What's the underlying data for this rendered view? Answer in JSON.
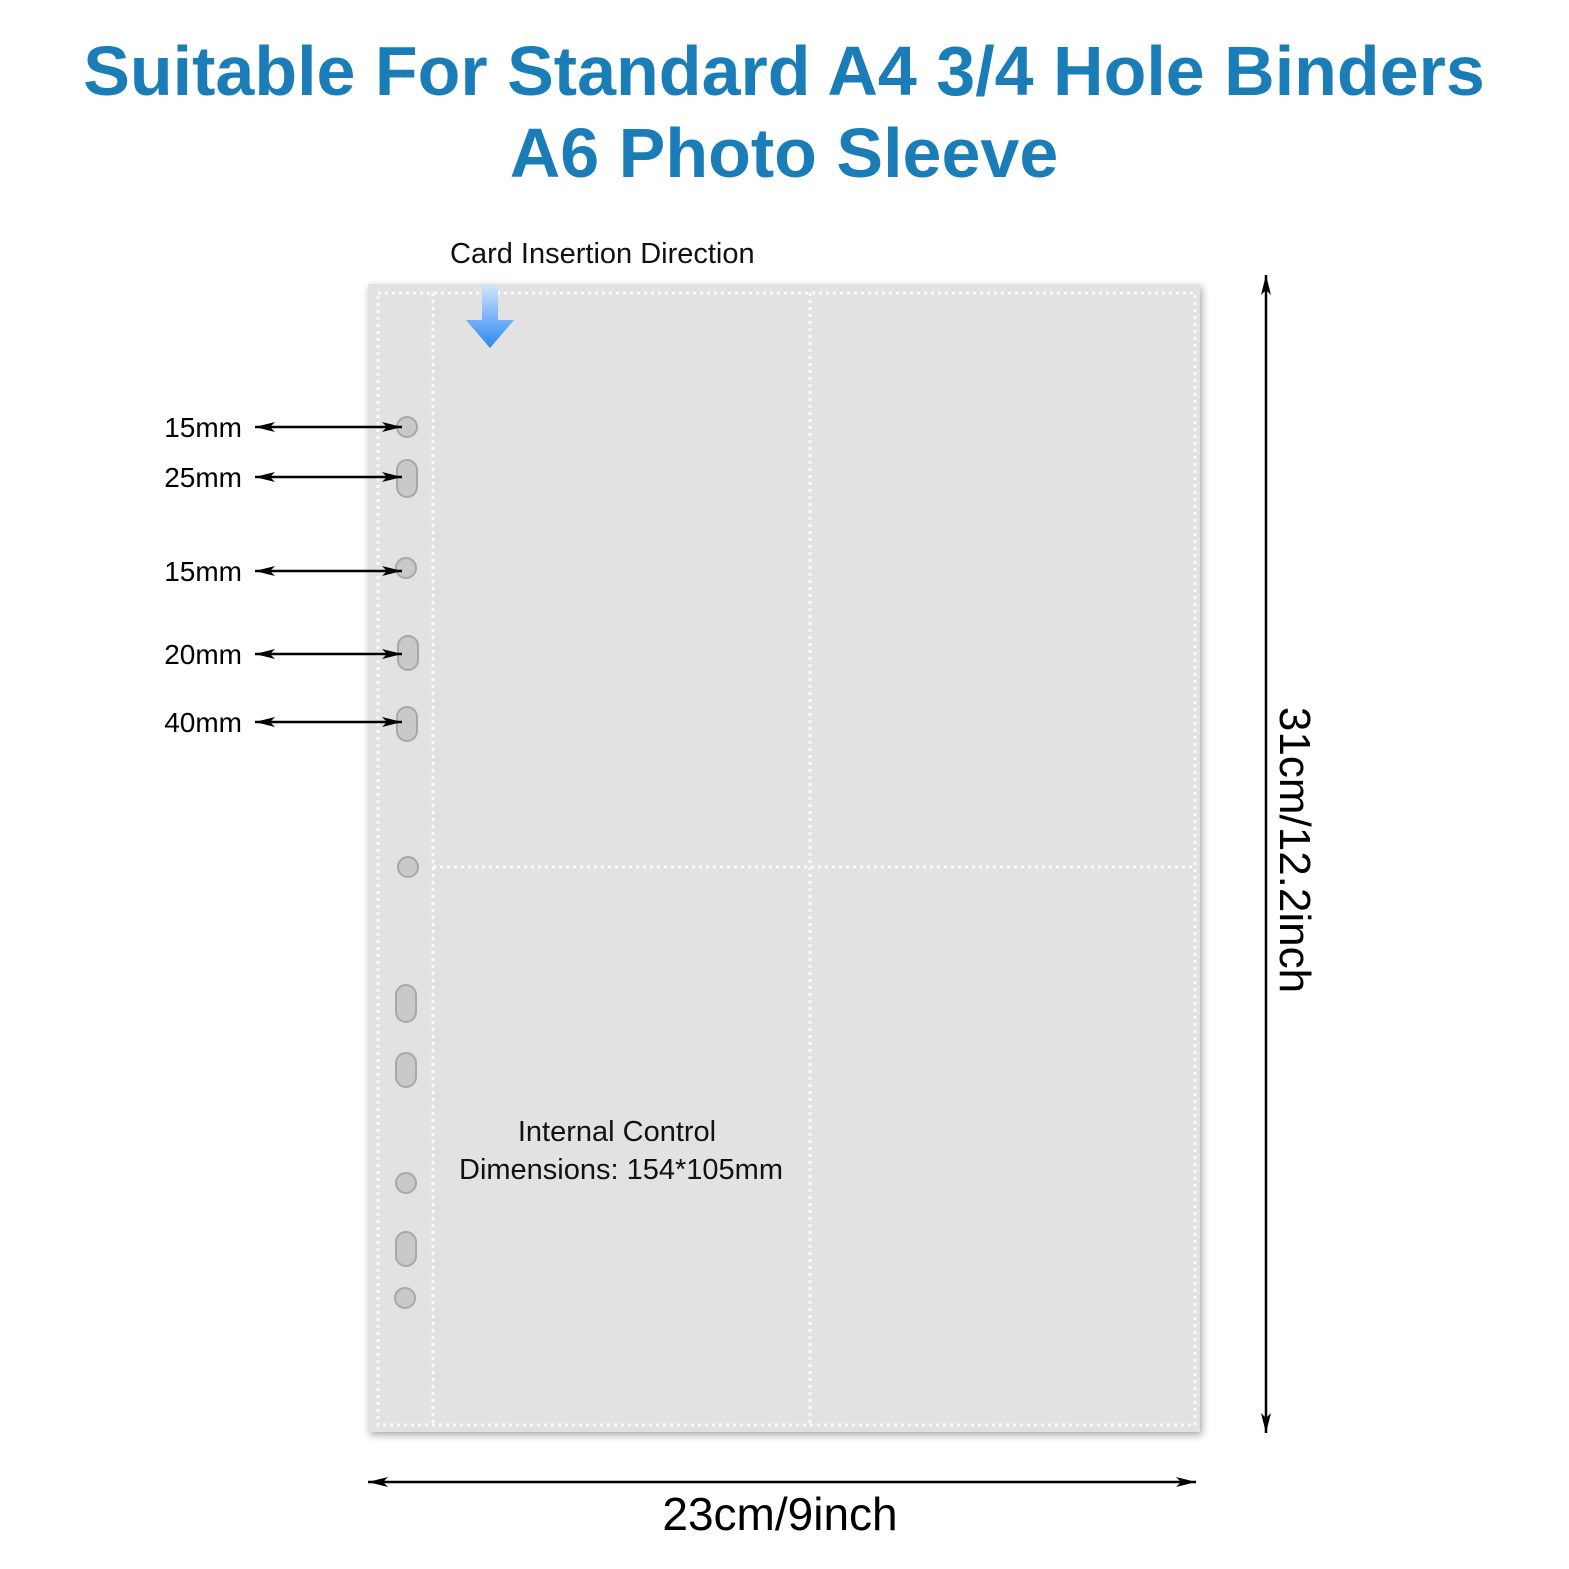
{
  "header": {
    "title_lines": [
      "Suitable For Standard A4 3/4 Hole Binders",
      "A6 Photo Sleeve"
    ]
  },
  "insertion_label": "Card Insertion Direction",
  "hole_spacings": [
    "15mm",
    "25mm",
    "15mm",
    "20mm",
    "40mm"
  ],
  "internal_control": [
    "Internal Control",
    "Dimensions: 154*105mm"
  ],
  "dimensions": {
    "width": "23cm/9inch",
    "height": "31cm/12.2inch"
  }
}
